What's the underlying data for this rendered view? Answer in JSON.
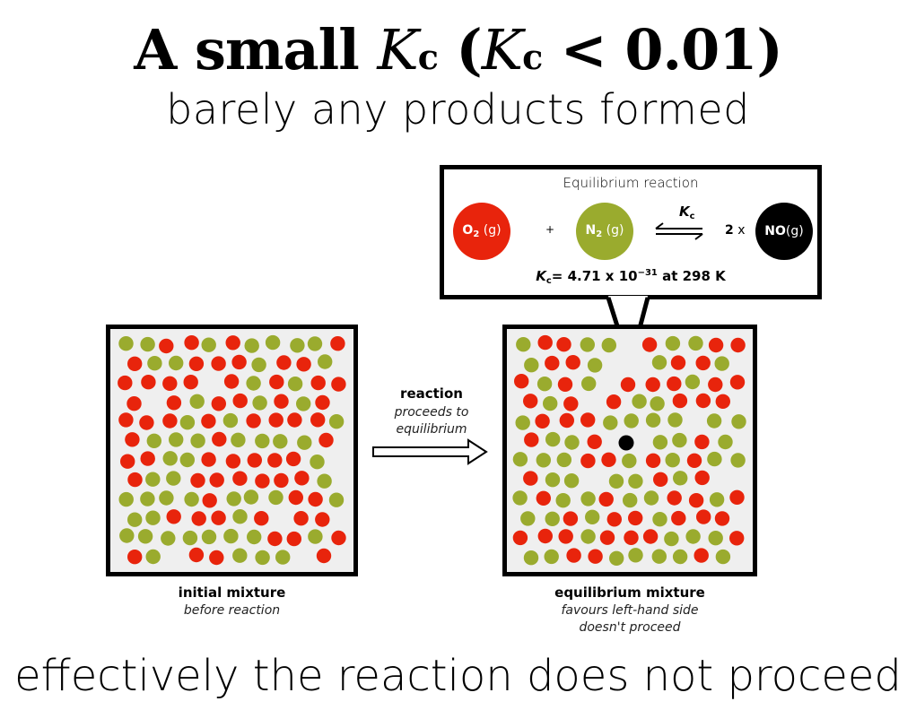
{
  "header": {
    "title_prefix": "A small ",
    "k_letter": "K",
    "k_sub": "c",
    "title_mid": " (",
    "title_suffix": " < 0.01)",
    "subtitle": "barely any products formed"
  },
  "callout": {
    "title": "Equilibrium reaction",
    "species": [
      {
        "formula": "O",
        "sub": "2",
        "state": " (g)",
        "color": "#e8240c"
      },
      {
        "formula": "N",
        "sub": "2",
        "state": " (g)",
        "color": "#9aab2e"
      },
      {
        "formula": "NO",
        "sub": "",
        "state": "(g)",
        "color": "#000000"
      }
    ],
    "plus": "+",
    "arrow_label_k": "K",
    "arrow_label_sub": "c",
    "coefficient": "2",
    "times": " x ",
    "kc_prefix_k": "K",
    "kc_prefix_sub": "c",
    "kc_value": "= 4.71 x 10",
    "kc_exp": "−31",
    "kc_suffix": " at 298 K"
  },
  "panels": {
    "initial": {
      "label": "initial mixture",
      "sublabel": "before reaction"
    },
    "equilibrium": {
      "label": "equilibrium mixture",
      "sublabel_1": "favours left-hand side",
      "sublabel_2": "doesn't proceed"
    }
  },
  "reaction_arrow": {
    "label": "reaction",
    "sub_1": "proceeds to",
    "sub_2": "equilibrium"
  },
  "colors": {
    "red": "#e8240c",
    "green": "#9aab2e",
    "black": "#000000",
    "box_fill": "#efefef"
  },
  "footer": {
    "text": "effectively the reaction does not proceed"
  }
}
